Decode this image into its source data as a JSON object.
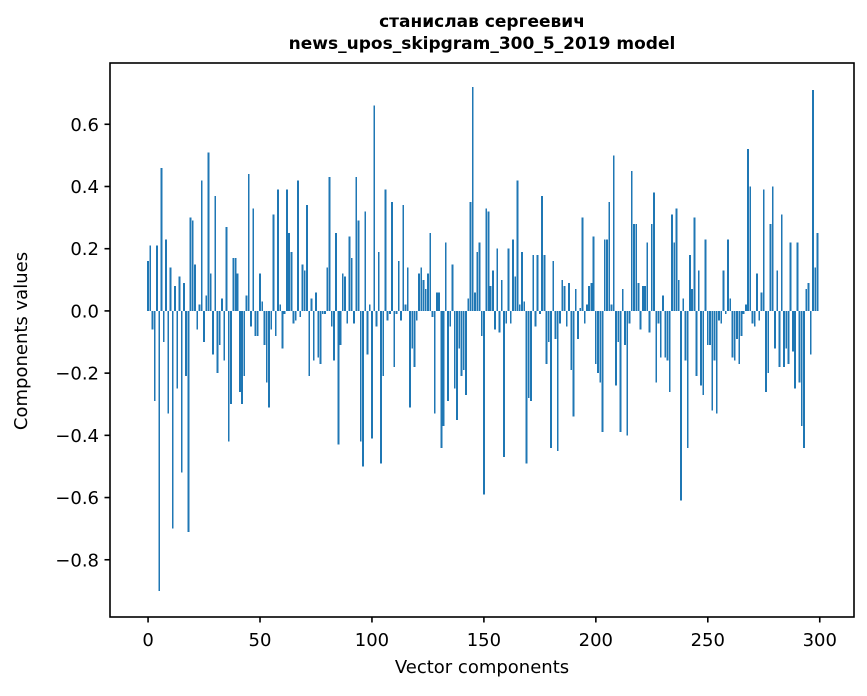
{
  "figure": {
    "title_line1": "станислав сергеевич",
    "title_line2": "news_upos_skipgram_300_5_2019 model",
    "xlabel": "Vector components",
    "ylabel": "Components values"
  },
  "chart_data": {
    "type": "bar",
    "title": "станислав сергеевич\nnews_upos_skipgram_300_5_2019 model",
    "xlabel": "Vector components",
    "ylabel": "Components values",
    "bar_color": "#1f77b4",
    "background_color": "#ffffff",
    "grid": false,
    "legend": "none",
    "x_start": 0,
    "xlim": [
      -17,
      315.3
    ],
    "ylim": [
      -0.984,
      0.797
    ],
    "x_ticks": [
      {
        "v": 0,
        "label": "0"
      },
      {
        "v": 50,
        "label": "50"
      },
      {
        "v": 100,
        "label": "100"
      },
      {
        "v": 150,
        "label": "150"
      },
      {
        "v": 200,
        "label": "200"
      },
      {
        "v": 250,
        "label": "250"
      },
      {
        "v": 300,
        "label": "300"
      }
    ],
    "y_ticks": [
      {
        "v": 0.6,
        "label": "0.6"
      },
      {
        "v": 0.4,
        "label": "0.4"
      },
      {
        "v": 0.2,
        "label": "0.2"
      },
      {
        "v": 0.0,
        "label": "0.0"
      },
      {
        "v": -0.2,
        "label": "−0.2"
      },
      {
        "v": -0.4,
        "label": "−0.4"
      },
      {
        "v": -0.6,
        "label": "−0.6"
      },
      {
        "v": -0.8,
        "label": "−0.8"
      }
    ],
    "values": [
      0.16,
      0.21,
      -0.06,
      -0.29,
      0.21,
      -0.9,
      0.46,
      -0.1,
      0.23,
      -0.33,
      0.14,
      -0.7,
      0.08,
      -0.25,
      0.11,
      -0.52,
      0.09,
      -0.21,
      -0.71,
      0.3,
      0.29,
      0.15,
      -0.06,
      0.02,
      0.42,
      -0.1,
      0.05,
      0.51,
      0.12,
      -0.14,
      0.37,
      -0.2,
      -0.11,
      0.04,
      -0.16,
      0.27,
      -0.42,
      -0.3,
      0.17,
      0.17,
      0.12,
      -0.26,
      -0.3,
      -0.21,
      0.05,
      0.44,
      -0.05,
      0.33,
      -0.08,
      -0.08,
      0.12,
      0.03,
      -0.11,
      -0.23,
      -0.31,
      -0.06,
      0.31,
      -0.08,
      0.39,
      0.02,
      -0.12,
      -0.01,
      0.39,
      0.25,
      0.19,
      -0.04,
      -0.03,
      0.42,
      -0.02,
      0.15,
      0.13,
      0.34,
      -0.21,
      0.04,
      -0.16,
      0.06,
      -0.15,
      -0.17,
      -0.01,
      -0.01,
      0.14,
      0.43,
      -0.05,
      -0.16,
      0.25,
      -0.43,
      -0.11,
      0.12,
      0.11,
      -0.04,
      0.24,
      0.17,
      -0.04,
      0.43,
      0.29,
      -0.42,
      -0.5,
      0.32,
      -0.14,
      0.02,
      -0.41,
      0.66,
      -0.05,
      0.19,
      -0.49,
      -0.21,
      0.39,
      -0.03,
      -0.01,
      0.35,
      -0.18,
      -0.01,
      0.16,
      -0.03,
      0.34,
      0.02,
      0.14,
      -0.31,
      -0.12,
      -0.18,
      -0.03,
      0.12,
      0.14,
      0.1,
      0.07,
      0.12,
      0.25,
      -0.02,
      -0.33,
      0.06,
      0.06,
      -0.44,
      -0.37,
      0.22,
      -0.29,
      -0.05,
      0.15,
      -0.25,
      -0.35,
      -0.12,
      -0.21,
      -0.19,
      -0.27,
      0.04,
      0.35,
      0.72,
      0.06,
      0.19,
      0.22,
      -0.08,
      -0.59,
      0.33,
      0.32,
      0.08,
      0.13,
      -0.06,
      0.2,
      -0.07,
      0.1,
      -0.47,
      -0.04,
      0.2,
      -0.04,
      0.23,
      0.11,
      0.42,
      0.02,
      0.19,
      0.03,
      -0.49,
      -0.28,
      -0.29,
      0.18,
      -0.05,
      0.18,
      -0.01,
      0.37,
      0.18,
      -0.17,
      -0.1,
      -0.44,
      0.16,
      -0.09,
      -0.45,
      -0.04,
      0.1,
      0.08,
      -0.05,
      0.09,
      -0.19,
      -0.34,
      0.07,
      -0.09,
      0.01,
      0.3,
      -0.04,
      0.02,
      0.08,
      0.09,
      0.24,
      -0.17,
      -0.2,
      -0.23,
      -0.39,
      0.23,
      0.23,
      0.35,
      0.02,
      0.5,
      -0.24,
      -0.1,
      -0.39,
      0.07,
      -0.11,
      -0.4,
      -0.04,
      0.45,
      0.28,
      0.28,
      0.09,
      -0.06,
      0.08,
      0.08,
      0.22,
      -0.07,
      0.28,
      0.38,
      -0.23,
      -0.04,
      -0.15,
      0.05,
      -0.15,
      -0.16,
      -0.26,
      0.31,
      0.22,
      0.33,
      0.1,
      -0.61,
      0.04,
      -0.16,
      -0.44,
      0.18,
      0.07,
      0.3,
      -0.21,
      0.13,
      -0.24,
      -0.27,
      0.23,
      -0.11,
      -0.11,
      -0.32,
      -0.16,
      -0.33,
      -0.03,
      -0.04,
      0.13,
      -0.01,
      0.23,
      0.04,
      -0.15,
      -0.16,
      -0.09,
      -0.17,
      -0.08,
      -0.01,
      0.02,
      0.52,
      0.4,
      -0.04,
      -0.05,
      0.12,
      -0.03,
      0.06,
      0.39,
      -0.26,
      -0.2,
      0.28,
      0.4,
      -0.12,
      0.13,
      -0.18,
      0.31,
      -0.18,
      -0.12,
      -0.17,
      0.22,
      -0.13,
      -0.25,
      0.22,
      -0.23,
      -0.37,
      -0.44,
      0.07,
      0.09,
      -0.14,
      0.71,
      0.14,
      0.25
    ]
  }
}
